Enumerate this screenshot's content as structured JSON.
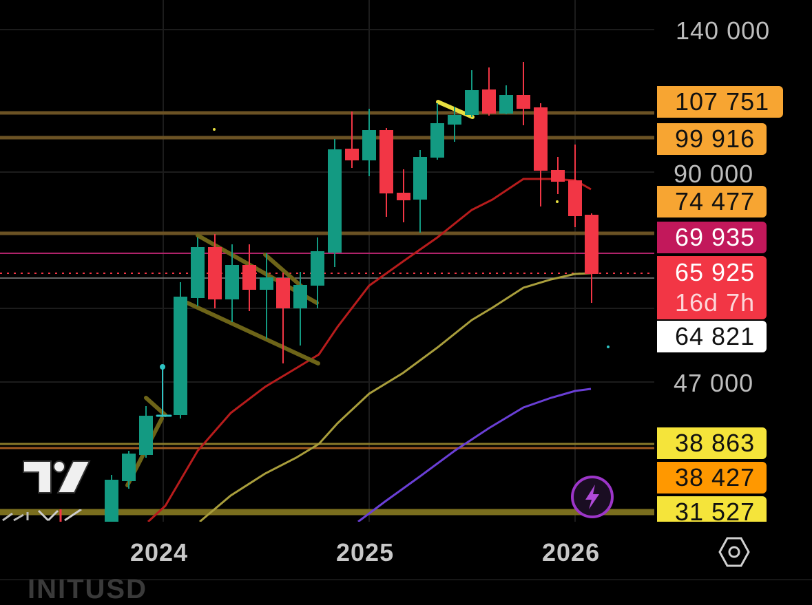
{
  "symbol": "INITUSD",
  "price_axis": {
    "labels": [
      "140 000",
      "90 000",
      "47 000"
    ],
    "tags": [
      {
        "name": "level-107751",
        "value": "107 751",
        "color": "#f7a532"
      },
      {
        "name": "level-99916",
        "value": "99 916",
        "color": "#f7a532"
      },
      {
        "name": "level-74477",
        "value": "74 477",
        "color": "#f7a532"
      },
      {
        "name": "level-69935",
        "value": "69 935",
        "color": "#c2185b"
      },
      {
        "name": "last-price",
        "value": "65 925",
        "countdown": "16d 7h",
        "color": "#f23645"
      },
      {
        "name": "level-64821",
        "value": "64 821",
        "color": "#ffffff"
      },
      {
        "name": "level-38863",
        "value": "38 863",
        "color": "#f5e43a"
      },
      {
        "name": "level-38427",
        "value": "38 427",
        "color": "#ff9800"
      },
      {
        "name": "level-31527",
        "value": "31 527",
        "color": "#f5e43a"
      }
    ]
  },
  "time_axis": {
    "labels": [
      "2024",
      "2025",
      "2026"
    ]
  },
  "colors": {
    "up": "#139a82",
    "down": "#f23645",
    "background": "#000000"
  },
  "icons": {
    "settings": "settings-hex-icon",
    "bolt": "lightning-icon",
    "logo": "tradingview-logo"
  }
}
